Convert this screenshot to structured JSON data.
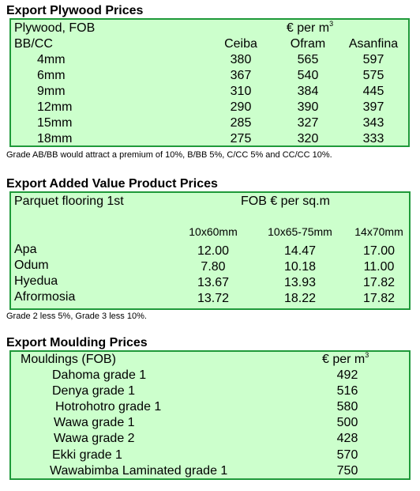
{
  "plywood": {
    "title": "Export Plywood Prices",
    "header_left": "Plywood, FOB",
    "header_unit": "€ per m",
    "header_unit_sup": "3",
    "grade_label": "BB/CC",
    "columns": [
      "Ceiba",
      "Ofram",
      "Asanfina"
    ],
    "rows": [
      {
        "size": "4mm",
        "values": [
          "380",
          "565",
          "597"
        ]
      },
      {
        "size": "6mm",
        "values": [
          "367",
          "540",
          "575"
        ]
      },
      {
        "size": "9mm",
        "values": [
          "310",
          "384",
          "445"
        ]
      },
      {
        "size": "12mm",
        "values": [
          "290",
          "390",
          "397"
        ]
      },
      {
        "size": "15mm",
        "values": [
          "285",
          "327",
          "343"
        ]
      },
      {
        "size": "18mm",
        "values": [
          "275",
          "320",
          "333"
        ]
      }
    ],
    "note": "Grade AB/BB would attract a premium of 10%, B/BB 5%, C/CC 5% and CC/CC 10%."
  },
  "added_value": {
    "title": "Export Added Value Product Prices",
    "product": "Parquet flooring 1st",
    "unit": "FOB € per sq.m",
    "columns": [
      "10x60mm",
      "10x65-75mm",
      "14x70mm"
    ],
    "rows": [
      {
        "species": "Apa",
        "values": [
          "12.00",
          "14.47",
          "17.00"
        ]
      },
      {
        "species": "Odum",
        "values": [
          "7.80",
          "10.18",
          "11.00"
        ]
      },
      {
        "species": "Hyedua",
        "values": [
          "13.67",
          "13.93",
          "17.82"
        ]
      },
      {
        "species": "Afrormosia",
        "values": [
          "13.72",
          "18.22",
          "17.82"
        ]
      }
    ],
    "note": "Grade 2 less 5%, Grade 3 less 10%."
  },
  "moulding": {
    "title": "Export Moulding Prices",
    "header_left": "Mouldings (FOB)",
    "header_unit": "€ per m",
    "header_unit_sup": "3",
    "rows": [
      {
        "name": "Dahoma grade 1",
        "value": "492"
      },
      {
        "name": "Denya grade 1",
        "value": "516"
      },
      {
        "name": "Hotrohotro grade 1",
        "value": "580"
      },
      {
        "name": "Wawa grade 1",
        "value": "500"
      },
      {
        "name": "Wawa grade 2",
        "value": "428"
      },
      {
        "name": "Ekki grade 1",
        "value": "570"
      },
      {
        "name": "Wawabimba Laminated grade 1",
        "value": "750"
      }
    ]
  }
}
